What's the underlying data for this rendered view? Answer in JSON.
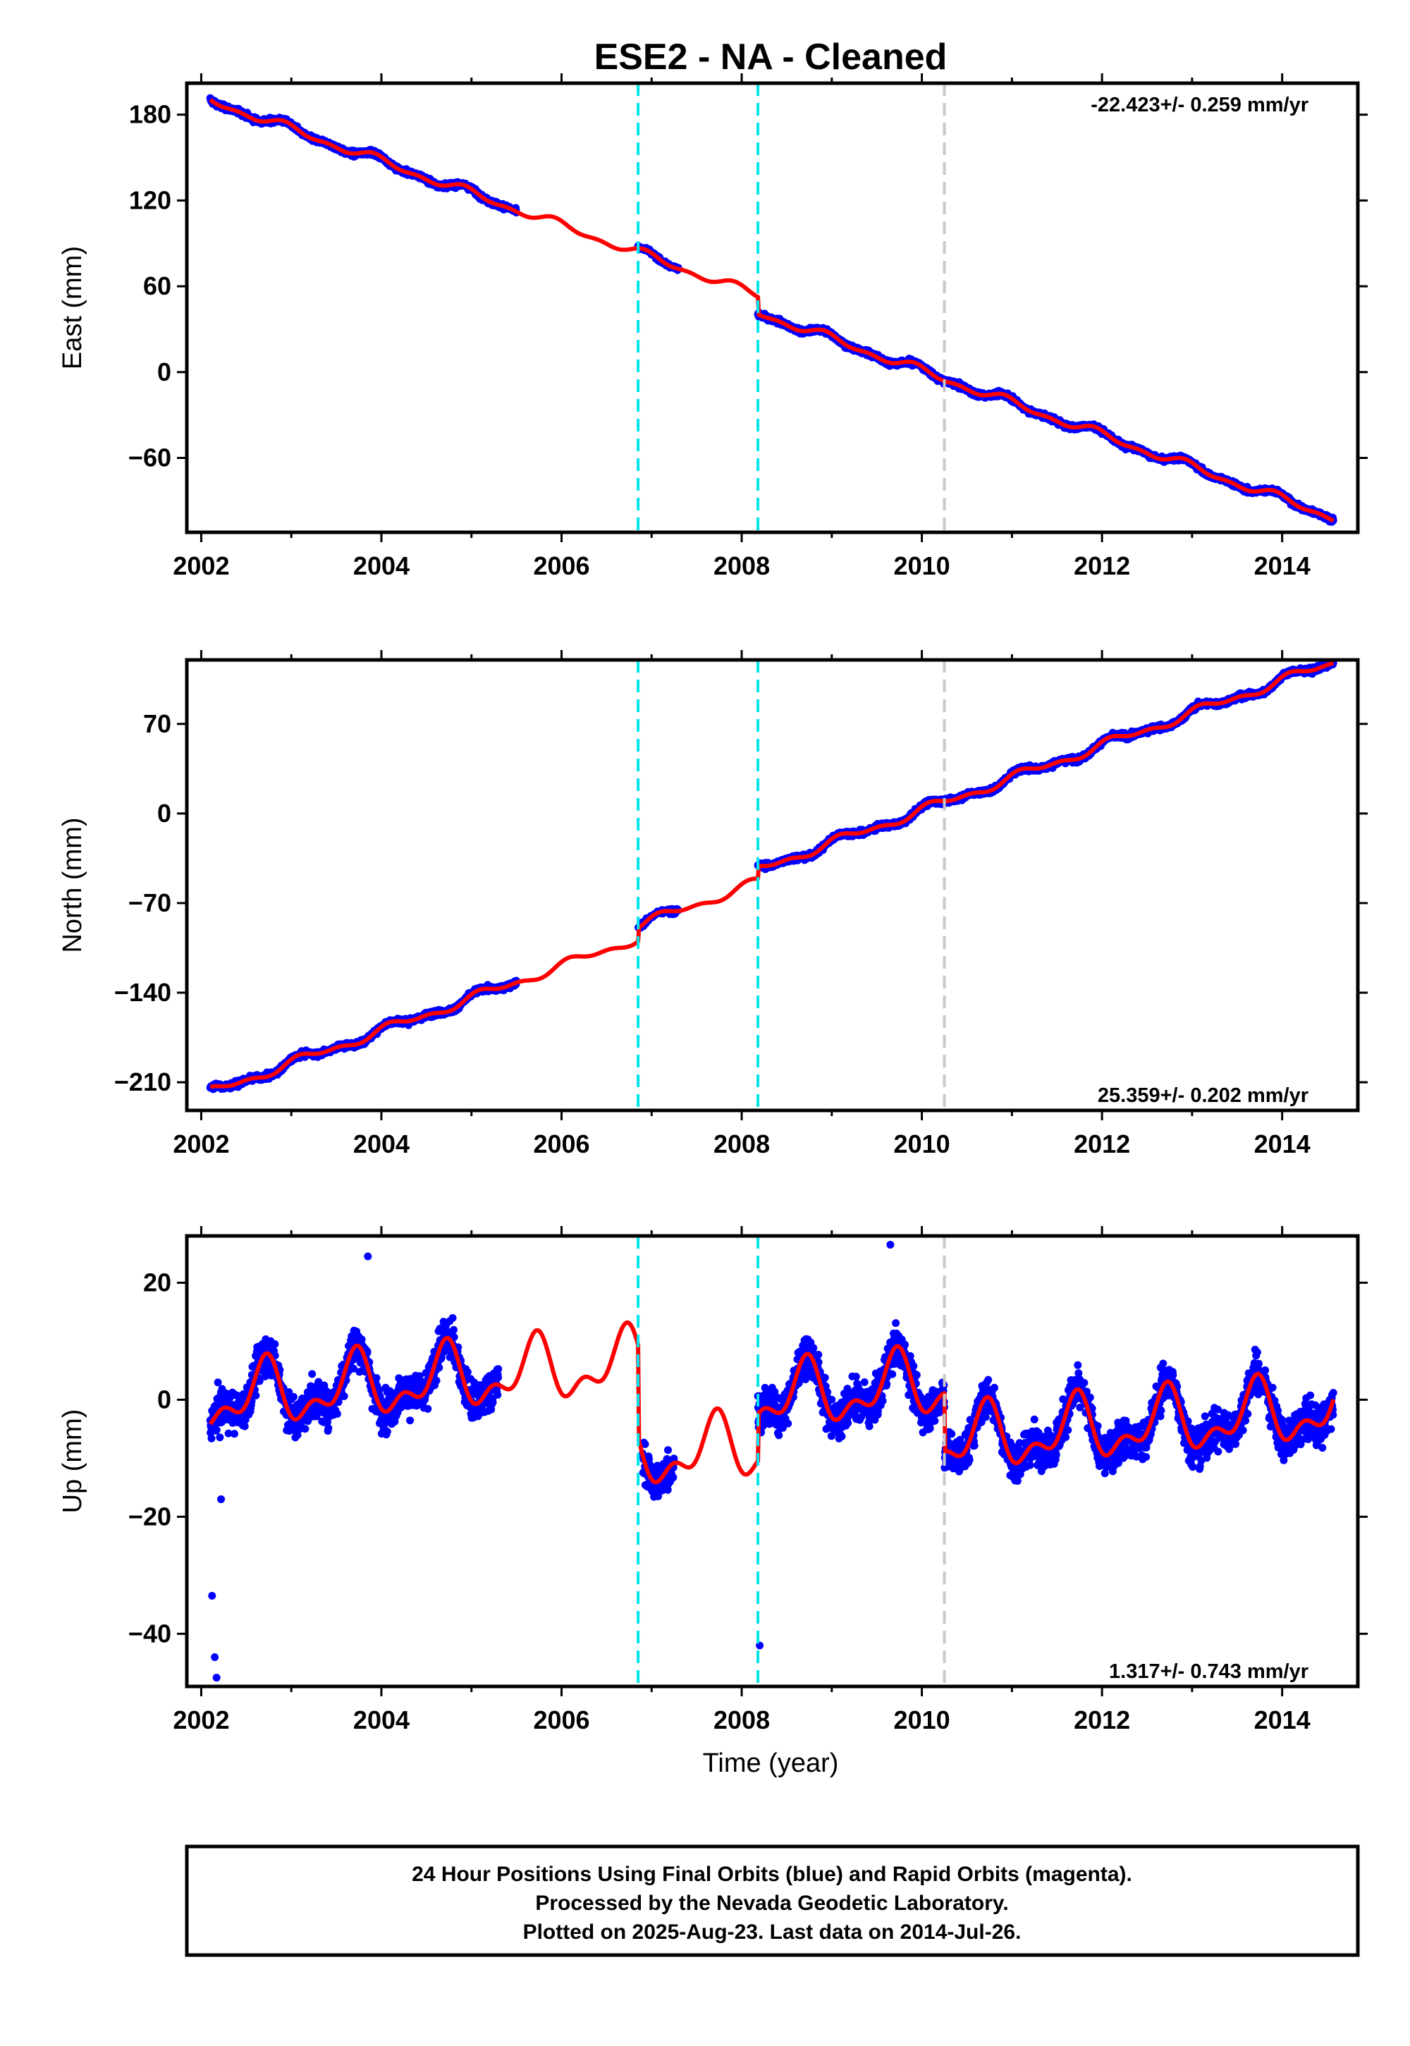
{
  "title": "ESE2  - NA - Cleaned",
  "xlabel": "Time (year)",
  "colors": {
    "final_orbits": "#0000ff",
    "model": "#ff0000",
    "offset_equipment": "#00e5ee",
    "offset_other": "#c8c8c8",
    "frame": "#000000"
  },
  "chart_data": [
    {
      "type": "scatter",
      "panel": "east",
      "ylabel": "East (mm)",
      "rate_label": "-22.423+/- 0.259 mm/yr",
      "xlim": [
        2001.84,
        2014.84
      ],
      "ylim": [
        -112,
        202
      ],
      "xticks": [
        "2002",
        "2004",
        "2006",
        "2008",
        "2010",
        "2012",
        "2014"
      ],
      "yticks": [
        "180",
        "120",
        "60",
        "0",
        "−60"
      ],
      "ytick_values": [
        180,
        120,
        60,
        0,
        -60
      ],
      "offsets": [
        {
          "x": 2006.85,
          "kind": "equipment"
        },
        {
          "x": 2008.18,
          "kind": "equipment"
        },
        {
          "x": 2010.25,
          "kind": "other"
        }
      ],
      "trend": {
        "t0": 2002.1,
        "y0": 190,
        "rate": -22.423
      },
      "steps": [
        {
          "x": 2008.18,
          "dy": -12
        }
      ],
      "seasonal": {
        "amp": 2.5,
        "phase": 0.3
      },
      "noise": 2.2,
      "data_ranges": [
        [
          2002.1,
          2005.5
        ],
        [
          2006.85,
          2007.3
        ],
        [
          2008.18,
          2014.57
        ]
      ],
      "outliers": []
    },
    {
      "type": "scatter",
      "panel": "north",
      "ylabel": "North (mm)",
      "rate_label": "25.359+/- 0.202 mm/yr",
      "xlim": [
        2001.84,
        2014.84
      ],
      "ylim": [
        -232,
        120
      ],
      "xticks": [
        "2002",
        "2004",
        "2006",
        "2008",
        "2010",
        "2012",
        "2014"
      ],
      "yticks": [
        "70",
        "0",
        "−70",
        "−140",
        "−210"
      ],
      "ytick_values": [
        70,
        0,
        -70,
        -140,
        -210
      ],
      "offsets": [
        {
          "x": 2006.85,
          "kind": "equipment"
        },
        {
          "x": 2008.18,
          "kind": "equipment"
        },
        {
          "x": 2010.25,
          "kind": "other"
        }
      ],
      "trend": {
        "t0": 2002.1,
        "y0": -218,
        "rate": 25.359
      },
      "steps": [
        {
          "x": 2006.85,
          "dy": 10
        },
        {
          "x": 2008.18,
          "dy": 10
        }
      ],
      "seasonal": {
        "amp": 3.0,
        "phase": 0.1
      },
      "noise": 2.6,
      "data_ranges": [
        [
          2002.1,
          2005.5
        ],
        [
          2006.85,
          2007.3
        ],
        [
          2008.18,
          2014.57
        ]
      ],
      "outliers": []
    },
    {
      "type": "scatter",
      "panel": "up",
      "ylabel": "Up (mm)",
      "rate_label": "1.317+/- 0.743 mm/yr",
      "xlim": [
        2001.84,
        2014.84
      ],
      "ylim": [
        -49,
        28
      ],
      "xticks": [
        "2002",
        "2004",
        "2006",
        "2008",
        "2010",
        "2012",
        "2014"
      ],
      "yticks": [
        "20",
        "0",
        "−20",
        "−40"
      ],
      "ytick_values": [
        20,
        0,
        -20,
        -40
      ],
      "offsets": [
        {
          "x": 2006.85,
          "kind": "equipment"
        },
        {
          "x": 2008.18,
          "kind": "equipment"
        },
        {
          "x": 2010.25,
          "kind": "other"
        }
      ],
      "trend": {
        "t0": 2002.1,
        "y0": 0,
        "rate": 1.317
      },
      "steps": [
        {
          "x": 2006.85,
          "dy": -16
        },
        {
          "x": 2008.18,
          "dy": 8
        },
        {
          "x": 2010.25,
          "dy": -10
        }
      ],
      "seasonal": {
        "amp": 4.5,
        "phase": 0.55
      },
      "noise": 4.2,
      "data_ranges": [
        [
          2002.1,
          2005.3
        ],
        [
          2006.9,
          2007.25
        ],
        [
          2008.18,
          2014.57
        ]
      ],
      "outliers": [
        {
          "x": 2002.12,
          "y": -33.5
        },
        {
          "x": 2002.15,
          "y": -44
        },
        {
          "x": 2002.17,
          "y": -47.5
        },
        {
          "x": 2008.2,
          "y": -42
        },
        {
          "x": 2009.65,
          "y": 26.5
        },
        {
          "x": 2003.85,
          "y": 24.5
        },
        {
          "x": 2002.22,
          "y": -17
        }
      ]
    }
  ],
  "footer": {
    "line1": "24 Hour Positions Using Final Orbits (blue) and Rapid Orbits (magenta).",
    "line2": "Processed by the Nevada Geodetic Laboratory.",
    "line3": "Plotted on 2025-Aug-23. Last data on 2014-Jul-26."
  }
}
